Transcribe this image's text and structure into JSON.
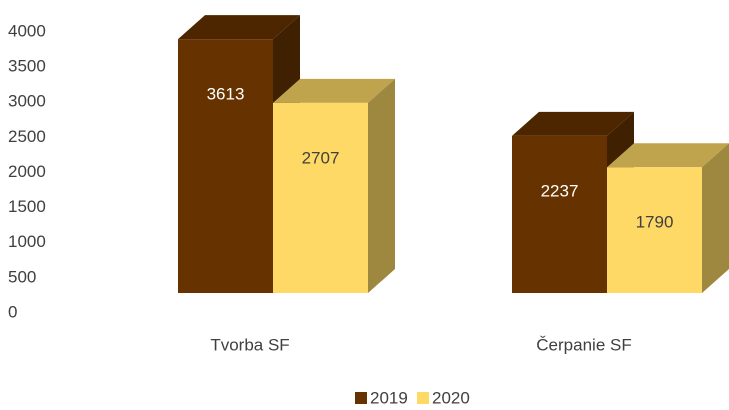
{
  "chart_data": {
    "type": "bar3d",
    "categories": [
      "Tvorba SF",
      "Čerpanie SF"
    ],
    "series": [
      {
        "name": "2019",
        "color": "#663300",
        "values": [
          3613,
          2237
        ]
      },
      {
        "name": "2020",
        "color": "#ffd966",
        "values": [
          2707,
          1790
        ]
      }
    ],
    "ylim": [
      0,
      4000
    ],
    "yticks": [
      0,
      500,
      1000,
      1500,
      2000,
      2500,
      3000,
      3500,
      4000
    ],
    "legend": "bottom"
  }
}
